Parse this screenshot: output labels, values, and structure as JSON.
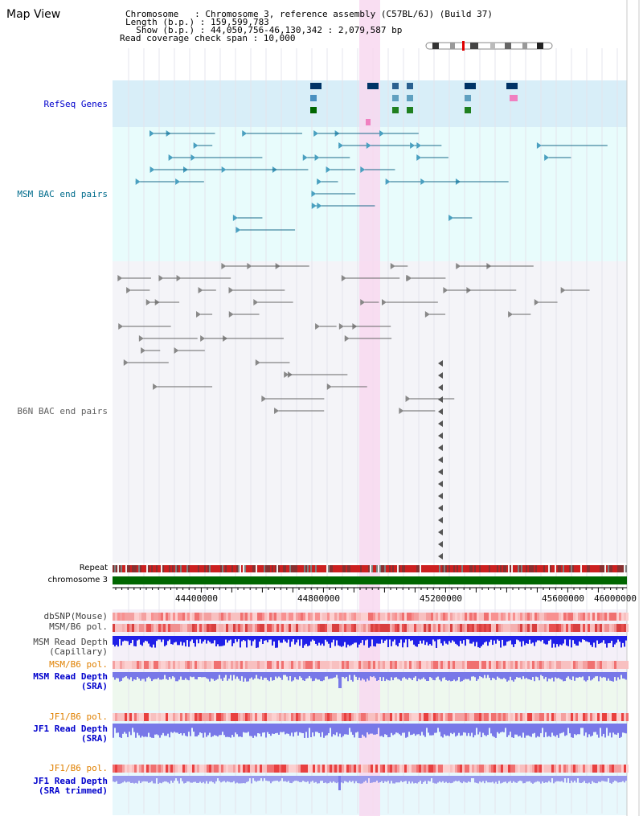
{
  "title": "Map View",
  "header": {
    "chromosome": "Chromosome   : Chromosome 3, reference assembly (C57BL/6J) (Build 37)",
    "length": "Length (b.p.) : 159,599,783",
    "show": "  Show (b.p.) : 44,050,756-46,130,342 : 2,079,587 bp",
    "coverage": "Read coverage check span : 10,000"
  },
  "tracks": {
    "refseq": "RefSeq Genes",
    "msm_bac": "MSM BAC end pairs",
    "b6n_bac": "B6N BAC end pairs",
    "repeat": "Repeat",
    "chromosome": "chromosome 3",
    "dbsnp": "dbSNP(Mouse)",
    "msm_b6_pol_1": "MSM/B6 pol.",
    "msm_read_depth_cap_1": "MSM Read Depth",
    "msm_read_depth_cap_2": "(Capillary)",
    "msm_b6_pol_2": "MSM/B6 pol.",
    "msm_read_depth_sra_1": "MSM Read Depth",
    "msm_read_depth_sra_2": "(SRA)",
    "jf1_b6_pol_1": "JF1/B6 pol.",
    "jf1_read_depth_sra_1": "JF1 Read Depth",
    "jf1_read_depth_sra_2": "(SRA)",
    "jf1_b6_pol_2": "JF1/B6 pol.",
    "jf1_read_depth_trim_1": "JF1 Read Depth",
    "jf1_read_depth_trim_2": "(SRA trimmed)"
  },
  "axis": {
    "ticks": [
      "44400000",
      "44800000",
      "45200000",
      "45600000",
      "46000000"
    ]
  },
  "colors": {
    "refseq_bg": "#d8eef8",
    "msm_bg": "#e8fcfc",
    "b6n_bg": "#f4f4f8",
    "highlight": "#f8d8f0",
    "chromosome": "#006600",
    "depth_blue": "#2020e8",
    "depth_light": "#7878e8",
    "label_blue": "#0000cc",
    "label_orange": "#e08000",
    "label_teal": "#006c8c"
  }
}
